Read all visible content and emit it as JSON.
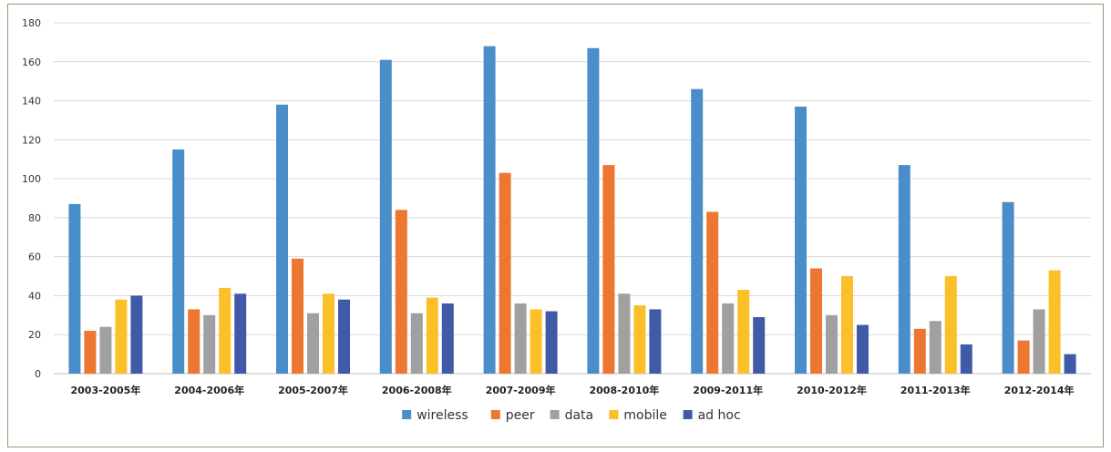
{
  "chart_data": {
    "type": "bar",
    "title": "",
    "xlabel": "",
    "ylabel": "",
    "ylim": [
      0,
      180
    ],
    "yticks": [
      0,
      20,
      40,
      60,
      80,
      100,
      120,
      140,
      160,
      180
    ],
    "grid": true,
    "legend_position": "bottom",
    "categories": [
      "2003-2005年",
      "2004-2006年",
      "2005-2007年",
      "2006-2008年",
      "2007-2009年",
      "2008-2010年",
      "2009-2011年",
      "2010-2012年",
      "2011-2013年",
      "2012-2014年"
    ],
    "series": [
      {
        "name": "wireless",
        "color": "#4a8ec9",
        "values": [
          87,
          115,
          138,
          161,
          168,
          167,
          146,
          137,
          107,
          88
        ]
      },
      {
        "name": "peer",
        "color": "#ed7630",
        "values": [
          22,
          33,
          59,
          84,
          103,
          107,
          83,
          54,
          23,
          17
        ]
      },
      {
        "name": "data",
        "color": "#a0a0a0",
        "values": [
          24,
          30,
          31,
          31,
          36,
          41,
          36,
          30,
          27,
          33
        ]
      },
      {
        "name": "mobile",
        "color": "#fbbf27",
        "values": [
          38,
          44,
          41,
          39,
          33,
          35,
          43,
          50,
          50,
          53
        ]
      },
      {
        "name": "ad hoc",
        "color": "#3f5ba8",
        "values": [
          40,
          41,
          38,
          36,
          32,
          33,
          29,
          25,
          15,
          10
        ]
      }
    ]
  }
}
